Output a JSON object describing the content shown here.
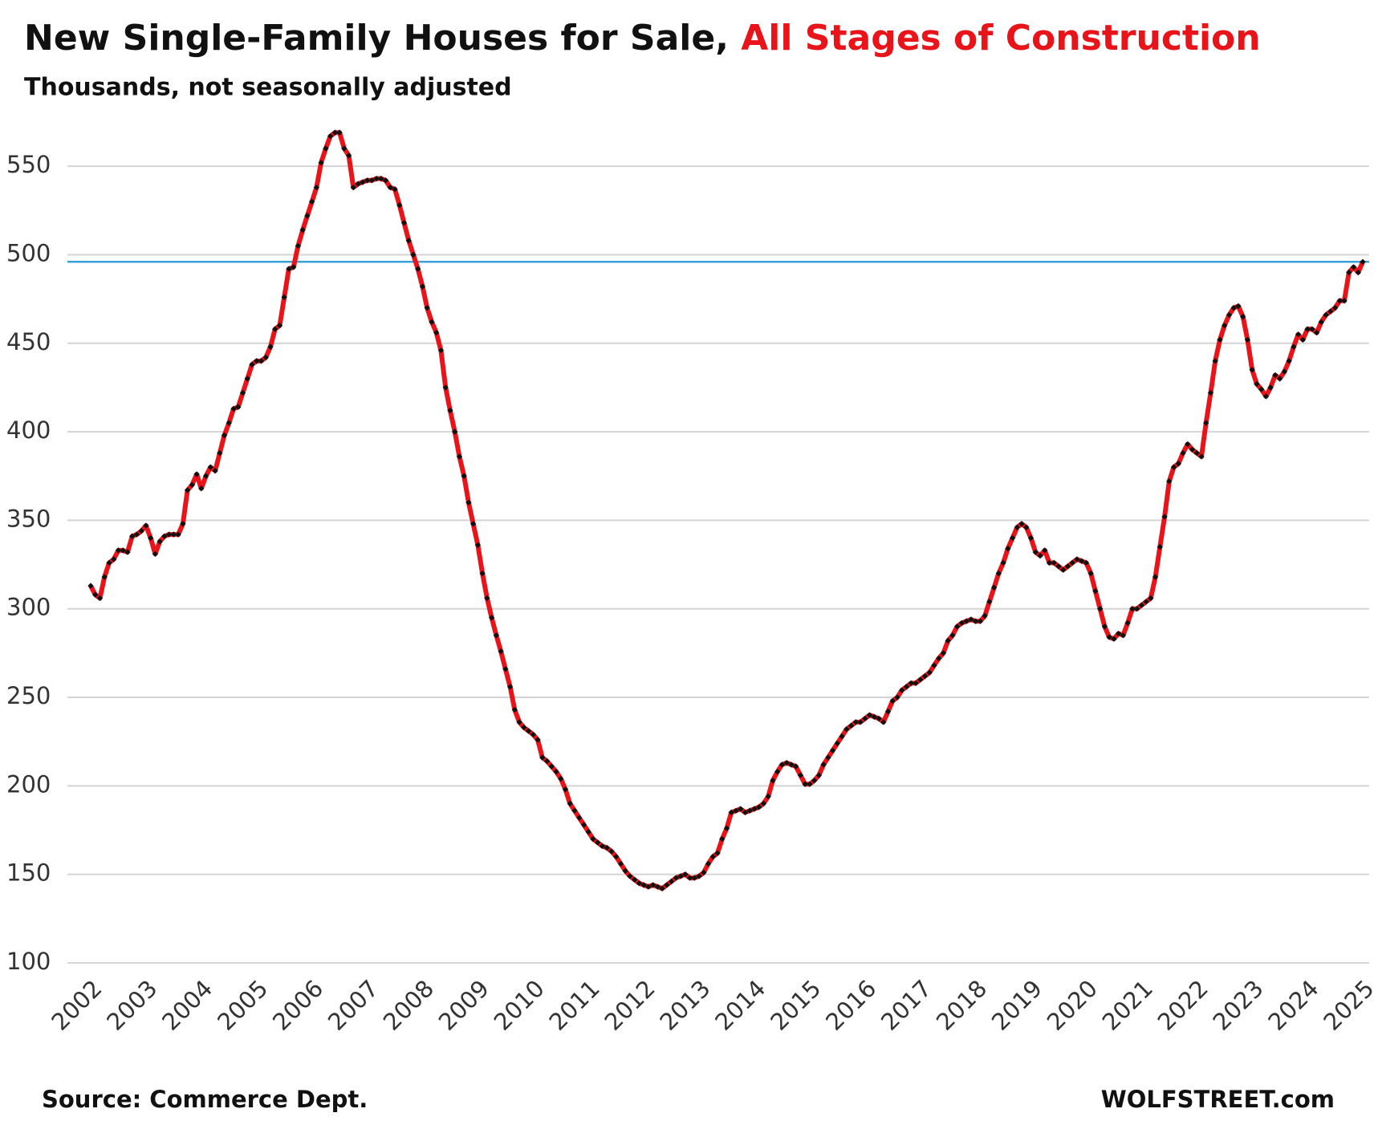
{
  "chart_data": {
    "type": "line",
    "title": "New Single-Family Houses for Sale,",
    "title_highlight": "All Stages of Construction",
    "subtitle": "Thousands, not seasonally adjusted",
    "source": "Source: Commerce Dept.",
    "credit": "WOLFSTREET.com",
    "categories": [
      "2002",
      null,
      null,
      null,
      null,
      null,
      null,
      null,
      null,
      null,
      null,
      null,
      "2003",
      null,
      null,
      null,
      null,
      null,
      null,
      null,
      null,
      null,
      null,
      null,
      "2004",
      null,
      null,
      null,
      null,
      null,
      null,
      null,
      null,
      null,
      null,
      null,
      "2005",
      null,
      null,
      null,
      null,
      null,
      null,
      null,
      null,
      null,
      null,
      null,
      "2006",
      null,
      null,
      null,
      null,
      null,
      null,
      null,
      null,
      null,
      null,
      null,
      "2007",
      null,
      null,
      null,
      null,
      null,
      null,
      null,
      null,
      null,
      null,
      null,
      "2008",
      null,
      null,
      null,
      null,
      null,
      null,
      null,
      null,
      null,
      null,
      null,
      "2009",
      null,
      null,
      null,
      null,
      null,
      null,
      null,
      null,
      null,
      null,
      null,
      "2010",
      null,
      null,
      null,
      null,
      null,
      null,
      null,
      null,
      null,
      null,
      null,
      "2011",
      null,
      null,
      null,
      null,
      null,
      null,
      null,
      null,
      null,
      null,
      null,
      "2012",
      null,
      null,
      null,
      null,
      null,
      null,
      null,
      null,
      null,
      null,
      null,
      "2013",
      null,
      null,
      null,
      null,
      null,
      null,
      null,
      null,
      null,
      null,
      null,
      "2014",
      null,
      null,
      null,
      null,
      null,
      null,
      null,
      null,
      null,
      null,
      null,
      "2015",
      null,
      null,
      null,
      null,
      null,
      null,
      null,
      null,
      null,
      null,
      null,
      "2016",
      null,
      null,
      null,
      null,
      null,
      null,
      null,
      null,
      null,
      null,
      null,
      "2017",
      null,
      null,
      null,
      null,
      null,
      null,
      null,
      null,
      null,
      null,
      null,
      "2018",
      null,
      null,
      null,
      null,
      null,
      null,
      null,
      null,
      null,
      null,
      null,
      "2019",
      null,
      null,
      null,
      null,
      null,
      null,
      null,
      null,
      null,
      null,
      null,
      "2020",
      null,
      null,
      null,
      null,
      null,
      null,
      null,
      null,
      null,
      null,
      null,
      "2021",
      null,
      null,
      null,
      null,
      null,
      null,
      null,
      null,
      null,
      null,
      null,
      "2022",
      null,
      null,
      null,
      null,
      null,
      null,
      null,
      null,
      null,
      null,
      null,
      "2023",
      null,
      null,
      null,
      null,
      null,
      null,
      null,
      null,
      null,
      null,
      null,
      "2024",
      null,
      null,
      null,
      null,
      null,
      null,
      null,
      null,
      null,
      null,
      null,
      "2025"
    ],
    "series": [
      {
        "color": "#e8141a",
        "marker_color": "#111111",
        "values": [
          313,
          308,
          306,
          318,
          326,
          328,
          333,
          333,
          332,
          341,
          342,
          344,
          347,
          340,
          331,
          338,
          341,
          342,
          342,
          342,
          348,
          367,
          370,
          376,
          368,
          375,
          380,
          378,
          388,
          398,
          405,
          413,
          414,
          422,
          430,
          438,
          440,
          440,
          442,
          448,
          458,
          460,
          476,
          492,
          493,
          505,
          514,
          522,
          530,
          538,
          552,
          560,
          567,
          569,
          569,
          560,
          556,
          538,
          540,
          541,
          542,
          542,
          543,
          543,
          542,
          538,
          537,
          528,
          518,
          508,
          500,
          492,
          482,
          470,
          462,
          456,
          446,
          425,
          412,
          400,
          386,
          375,
          360,
          348,
          336,
          320,
          306,
          295,
          285,
          276,
          266,
          256,
          243,
          236,
          233,
          231,
          229,
          226,
          216,
          214,
          211,
          208,
          204,
          198,
          190,
          186,
          182,
          178,
          174,
          170,
          168,
          166,
          165,
          163,
          160,
          156,
          152,
          149,
          147,
          145,
          144,
          143,
          144,
          143,
          142,
          144,
          146,
          148,
          149,
          150,
          148,
          148,
          149,
          151,
          156,
          160,
          162,
          170,
          176,
          185,
          186,
          187,
          185,
          186,
          187,
          188,
          190,
          194,
          203,
          208,
          212,
          213,
          212,
          211,
          206,
          201,
          201,
          203,
          206,
          212,
          216,
          220,
          224,
          228,
          232,
          234,
          236,
          236,
          238,
          240,
          239,
          238,
          236,
          242,
          248,
          250,
          254,
          256,
          258,
          258,
          260,
          262,
          264,
          268,
          272,
          275,
          282,
          285,
          290,
          292,
          293,
          294,
          293,
          293,
          296,
          304,
          312,
          320,
          326,
          334,
          340,
          346,
          348,
          346,
          340,
          332,
          330,
          333,
          326,
          326,
          324,
          322,
          324,
          326,
          328,
          327,
          326,
          320,
          310,
          300,
          290,
          284,
          283,
          286,
          285,
          292,
          300,
          300,
          302,
          304,
          306,
          318,
          335,
          352,
          372,
          380,
          382,
          388,
          393,
          390,
          388,
          386,
          405,
          422,
          440,
          452,
          460,
          466,
          470,
          471,
          465,
          452,
          435,
          427,
          424,
          420,
          425,
          432,
          430,
          434,
          440,
          448,
          455,
          452,
          458,
          458,
          456,
          462,
          466,
          468,
          470,
          474,
          474,
          490,
          493,
          490,
          496
        ]
      }
    ],
    "reference_line": {
      "value": 496,
      "color": "#3aa0d8"
    },
    "ylim": [
      100,
      575
    ],
    "yticks": [
      100,
      150,
      200,
      250,
      300,
      350,
      400,
      450,
      500,
      550
    ],
    "grid": true
  }
}
